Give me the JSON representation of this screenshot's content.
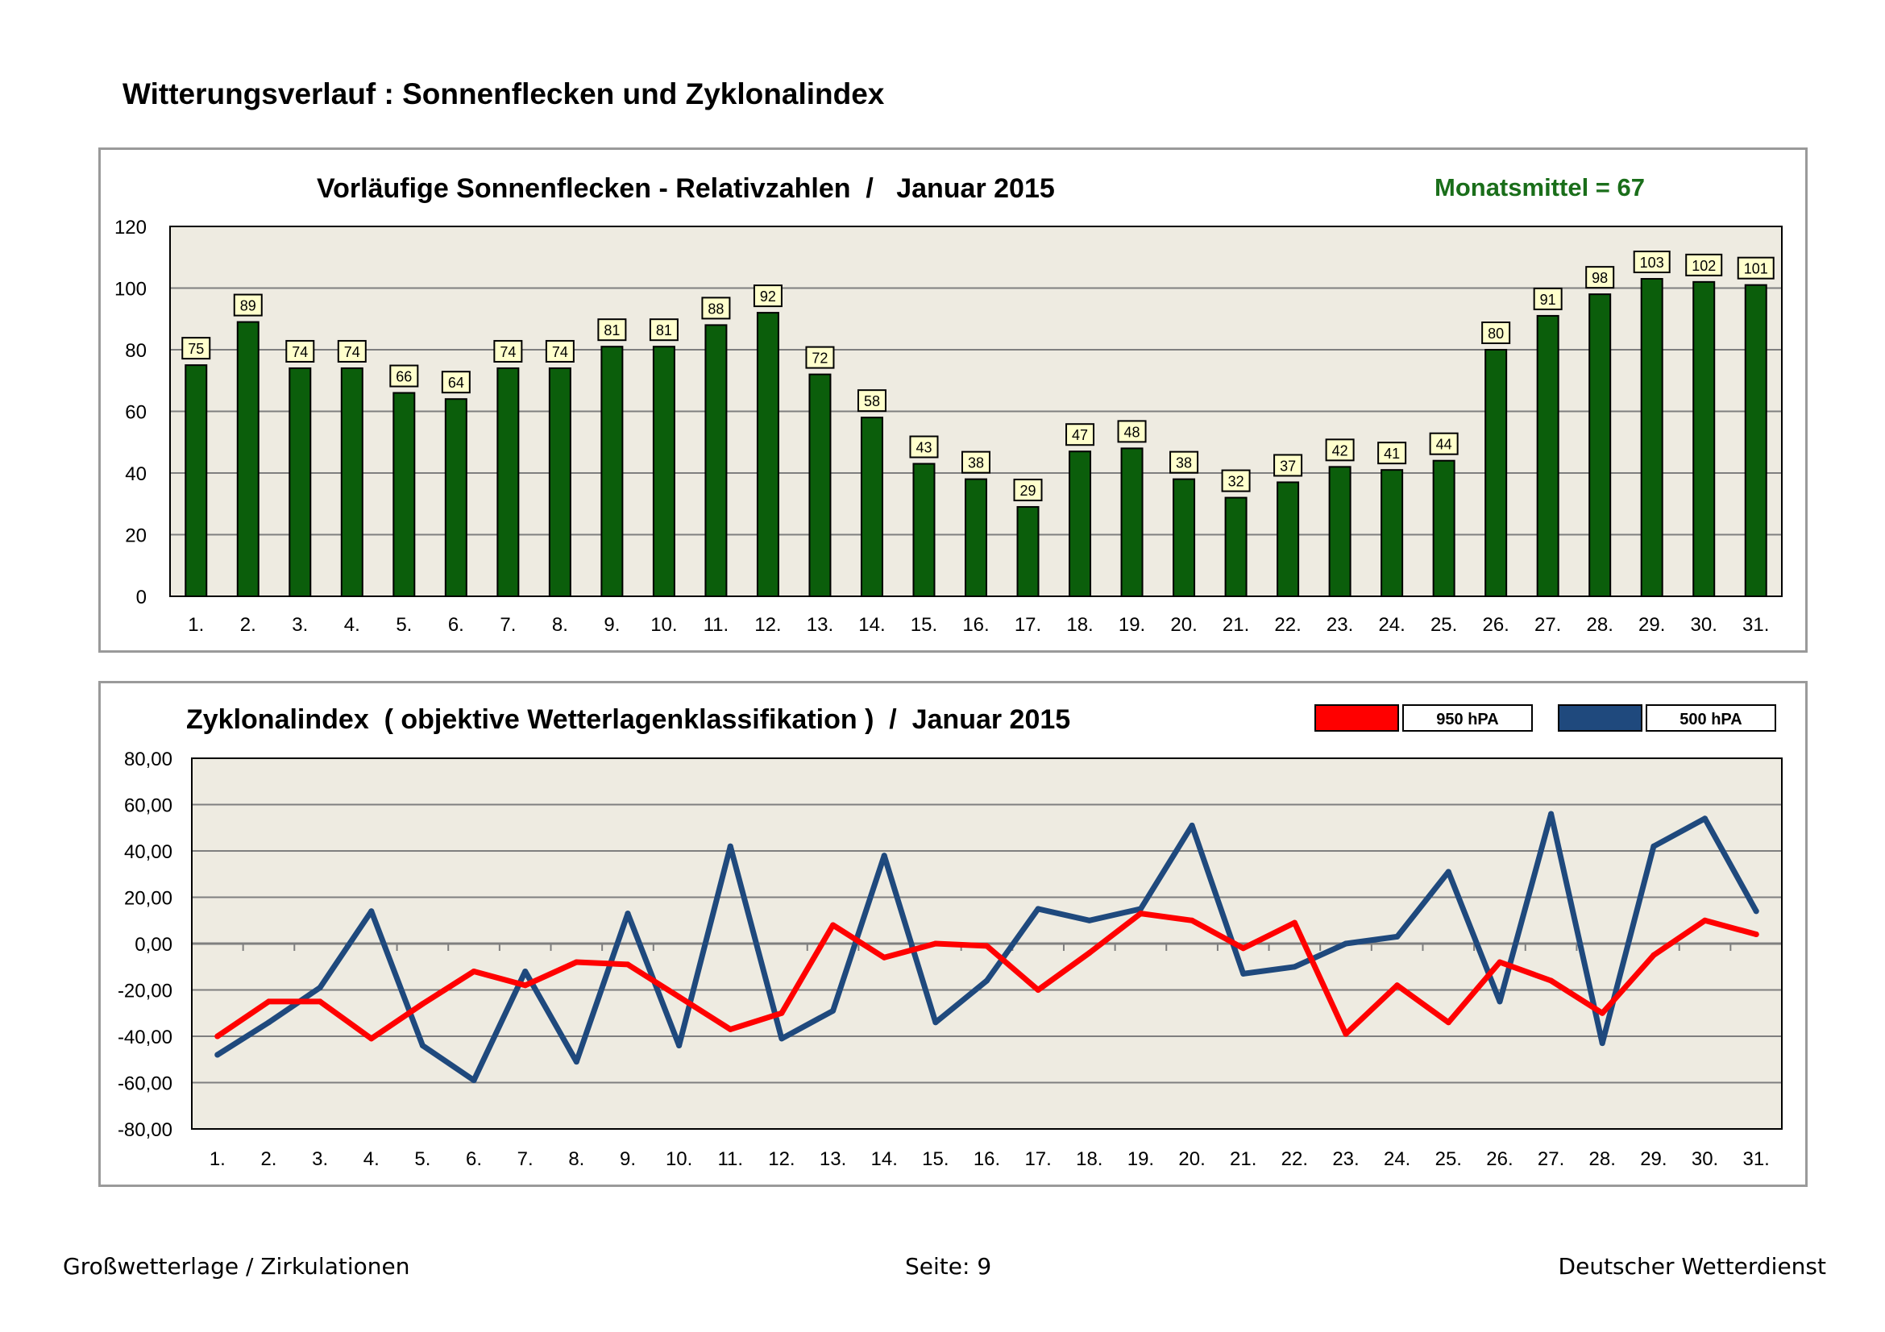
{
  "page": {
    "title": "Witterungsverlauf : Sonnenflecken und Zyklonalindex",
    "footer_left": "Großwetterlage / Zirkulationen",
    "footer_center": "Seite: 9",
    "footer_right": "Deutscher Wetterdienst"
  },
  "colors": {
    "plot_bg": "#eeebe1",
    "bar": "#0b5e0b",
    "bar_label_bg": "#ffffcc",
    "mean_text": "#1a6e1a",
    "line_950": "#ff0000",
    "line_500": "#1f497d",
    "grid": "#7f7f7f"
  },
  "chart_data": [
    {
      "type": "bar",
      "title": "Vorläufige Sonnenflecken - Relativzahlen  /   Januar 2015",
      "annotation": "Monatsmittel = 67",
      "categories": [
        "1.",
        "2.",
        "3.",
        "4.",
        "5.",
        "6.",
        "7.",
        "8.",
        "9.",
        "10.",
        "11.",
        "12.",
        "13.",
        "14.",
        "15.",
        "16.",
        "17.",
        "18.",
        "19.",
        "20.",
        "21.",
        "22.",
        "23.",
        "24.",
        "25.",
        "26.",
        "27.",
        "28.",
        "29.",
        "30.",
        "31."
      ],
      "values": [
        75,
        89,
        74,
        74,
        66,
        64,
        74,
        74,
        81,
        81,
        88,
        92,
        72,
        58,
        43,
        38,
        29,
        47,
        48,
        38,
        32,
        37,
        42,
        41,
        44,
        80,
        91,
        98,
        103,
        102,
        101
      ],
      "yticks": [
        "0",
        "20",
        "40",
        "60",
        "80",
        "100",
        "120"
      ],
      "ylim": [
        0,
        120
      ],
      "xlabel": "",
      "ylabel": "",
      "grid": true
    },
    {
      "type": "line",
      "title": "Zyklonalindex  ( objektive Wetterlagenklassifikation )  /  Januar 2015",
      "categories": [
        "1.",
        "2.",
        "3.",
        "4.",
        "5.",
        "6.",
        "7.",
        "8.",
        "9.",
        "10.",
        "11.",
        "12.",
        "13.",
        "14.",
        "15.",
        "16.",
        "17.",
        "18.",
        "19.",
        "20.",
        "21.",
        "22.",
        "23.",
        "24.",
        "25.",
        "26.",
        "27.",
        "28.",
        "29.",
        "30.",
        "31."
      ],
      "series": [
        {
          "name": "950 hPA",
          "values": [
            -40,
            -25,
            -25,
            -41,
            -26,
            -12,
            -18,
            -8,
            -9,
            -23,
            -37,
            -30,
            8,
            -6,
            0,
            -1,
            -20,
            -4,
            13,
            10,
            -2,
            9,
            -39,
            -18,
            -34,
            -8,
            -16,
            -30,
            -5,
            10,
            4
          ]
        },
        {
          "name": "500 hPA",
          "values": [
            -48,
            -34,
            -19,
            14,
            -44,
            -59,
            -12,
            -51,
            13,
            -44,
            42,
            -41,
            -29,
            38,
            -34,
            -16,
            15,
            10,
            15,
            51,
            -13,
            -10,
            0,
            3,
            31,
            -25,
            56,
            -43,
            42,
            54,
            14
          ]
        }
      ],
      "yticks": [
        "80,00",
        "60,00",
        "40,00",
        "20,00",
        "0,00",
        "-20,00",
        "-40,00",
        "-60,00",
        "-80,00"
      ],
      "ylim": [
        -80,
        80
      ],
      "xlabel": "",
      "ylabel": "",
      "grid": true
    }
  ]
}
